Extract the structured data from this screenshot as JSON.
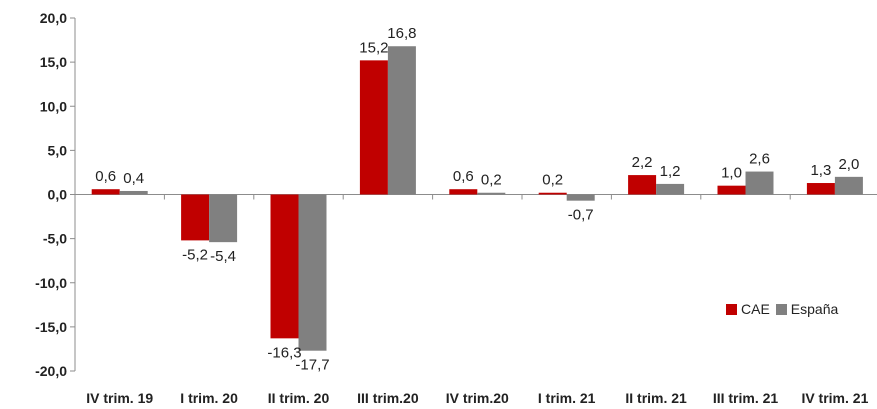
{
  "chart_data": {
    "type": "bar",
    "categories": [
      "IV trim. 19",
      "I trim. 20",
      "II trim. 20",
      "III trim.20",
      "IV trim.20",
      "I trim. 21",
      "II trim. 21",
      "III trim. 21",
      "IV trim. 21"
    ],
    "series": [
      {
        "name": "CAE",
        "values": [
          0.6,
          -5.2,
          -16.3,
          15.2,
          0.6,
          0.2,
          2.2,
          1.0,
          1.3
        ],
        "labels": [
          "0,6",
          "-5,2",
          "-16,3",
          "15,2",
          "0,6",
          "0,2",
          "2,2",
          "1,0",
          "1,3"
        ],
        "color": "#c00000"
      },
      {
        "name": "España",
        "values": [
          0.4,
          -5.4,
          -17.7,
          16.8,
          0.2,
          -0.7,
          1.2,
          2.6,
          2.0
        ],
        "labels": [
          "0,4",
          "-5,4",
          "-17,7",
          "16,8",
          "0,2",
          "-0,7",
          "1,2",
          "2,6",
          "2,0"
        ],
        "color": "#808080"
      }
    ],
    "ylim": [
      -20,
      20
    ],
    "yticks": [
      20,
      15,
      10,
      5,
      0,
      -5,
      -10,
      -15,
      -20
    ],
    "ytick_labels": [
      "20,0",
      "15,0",
      "10,0",
      "5,0",
      "0,0",
      "-5,0",
      "-10,0",
      "-15,0",
      "-20,0"
    ],
    "grid": false,
    "legend_position": "right"
  }
}
